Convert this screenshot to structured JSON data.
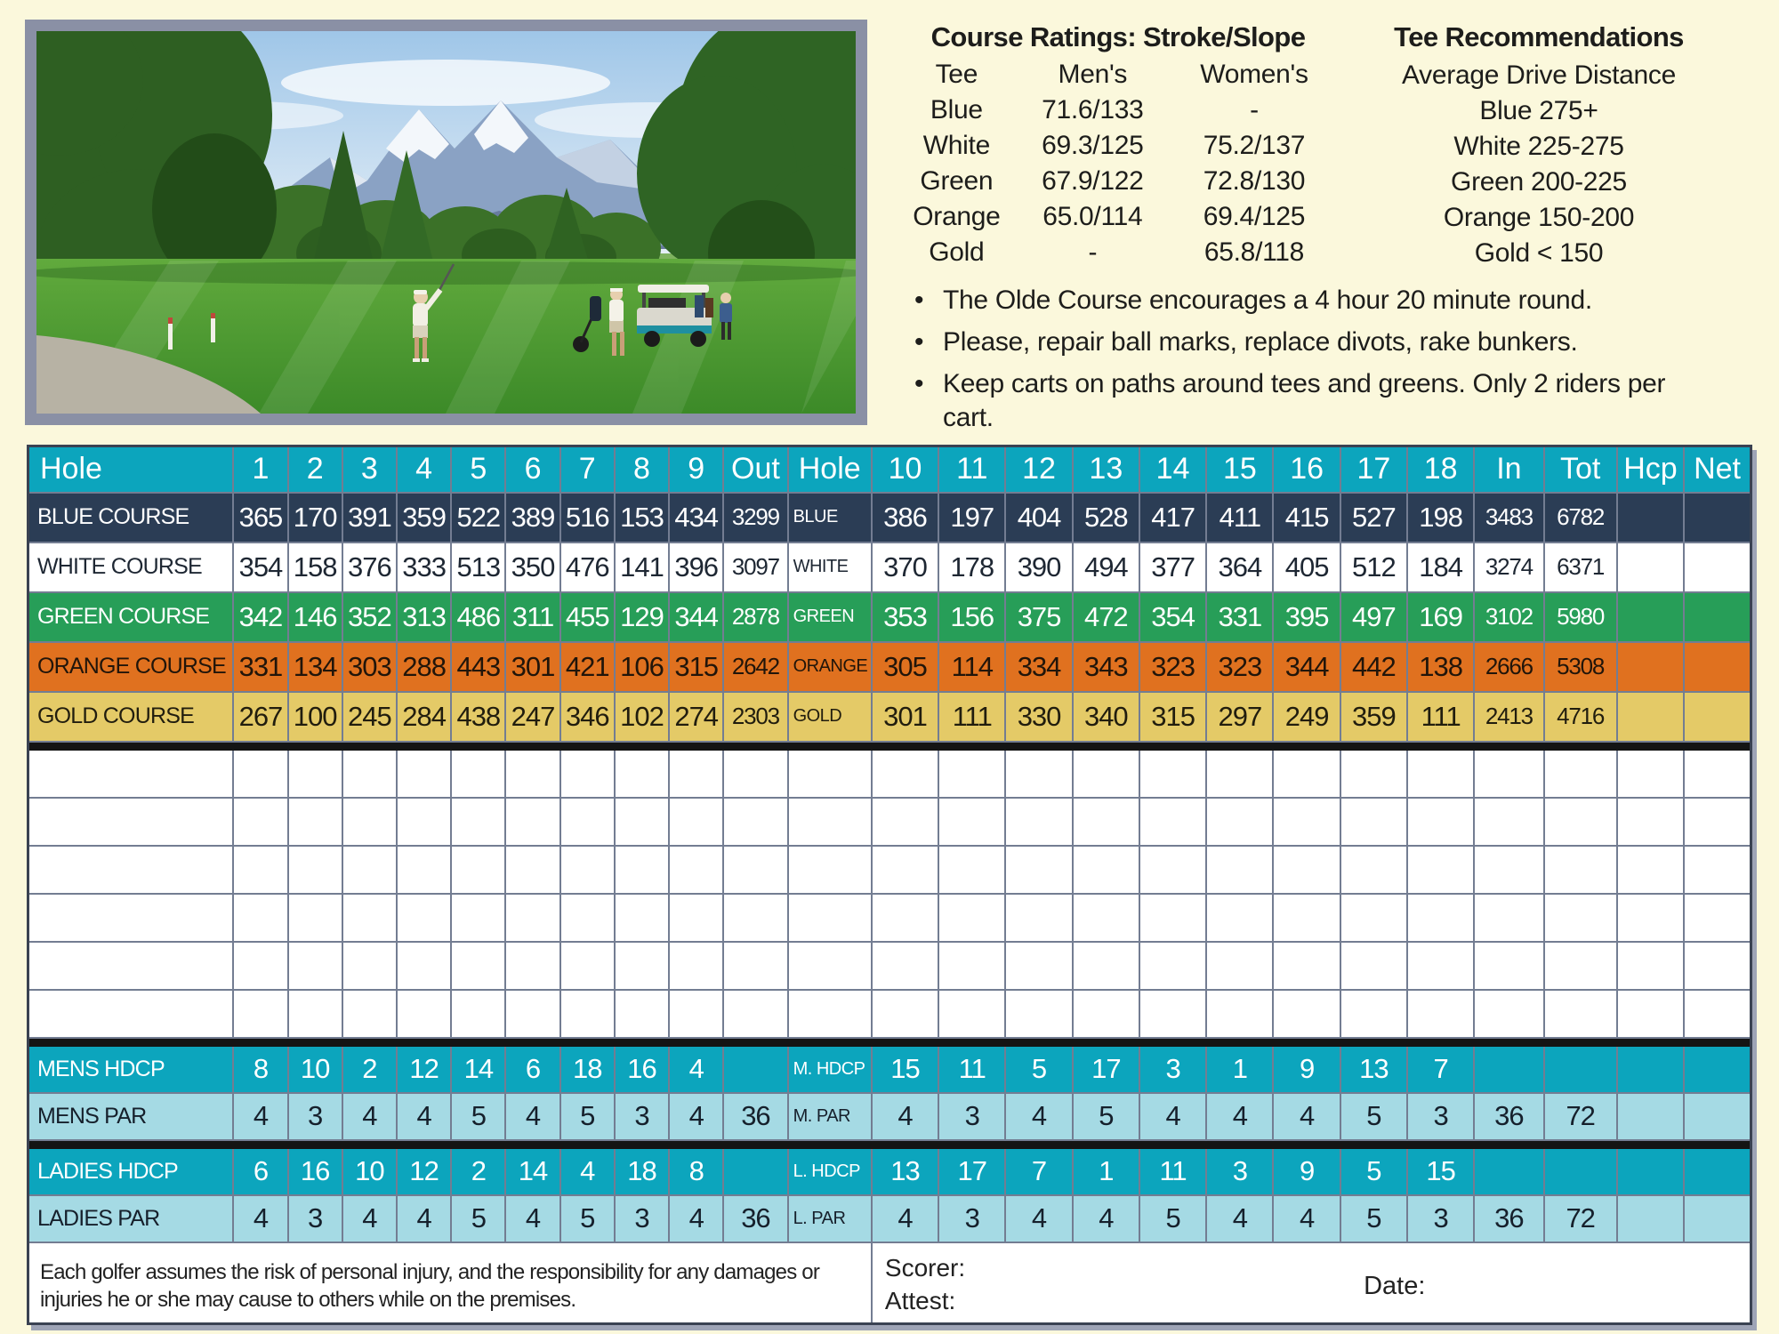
{
  "page": {
    "background": "#FBF8DC"
  },
  "photo": {
    "description": "Golfers and a cart on a tree-lined fairway with snow-capped twin peaks in the distance"
  },
  "ratings": {
    "title": "Course Ratings: Stroke/Slope",
    "columns": [
      "Tee",
      "Men's",
      "Women's"
    ],
    "rows": [
      [
        "Blue",
        "71.6/133",
        "-"
      ],
      [
        "White",
        "69.3/125",
        "75.2/137"
      ],
      [
        "Green",
        "67.9/122",
        "72.8/130"
      ],
      [
        "Orange",
        "65.0/114",
        "69.4/125"
      ],
      [
        "Gold",
        "-",
        "65.8/118"
      ]
    ]
  },
  "recommendations": {
    "title": "Tee Recommendations",
    "subtitle": "Average Drive Distance",
    "items": [
      "Blue 275+",
      "White 225-275",
      "Green 200-225",
      "Orange 150-200",
      "Gold < 150"
    ]
  },
  "notes": [
    "The Olde Course encourages a 4 hour 20 minute round.",
    "Please, repair ball marks, replace divots, rake bunkers.",
    "Keep carts on paths around tees and greens. Only 2 riders per cart."
  ],
  "scorecard": {
    "front_header": {
      "label": "Hole",
      "holes": [
        "1",
        "2",
        "3",
        "4",
        "5",
        "6",
        "7",
        "8",
        "9"
      ],
      "out": "Out"
    },
    "back_header": {
      "label": "Hole",
      "holes": [
        "10",
        "11",
        "12",
        "13",
        "14",
        "15",
        "16",
        "17",
        "18"
      ],
      "in": "In",
      "tot": "Tot",
      "hcp": "Hcp",
      "net": "Net"
    },
    "courses": [
      {
        "name": "BLUE COURSE",
        "short": "BLUE",
        "front": [
          365,
          170,
          391,
          359,
          522,
          389,
          516,
          153,
          434
        ],
        "out": 3299,
        "back": [
          386,
          197,
          404,
          528,
          417,
          411,
          415,
          527,
          198
        ],
        "in": 3483,
        "tot": 6782,
        "bg": "#2B3D55",
        "fg": "#FFFFFF"
      },
      {
        "name": "WHITE COURSE",
        "short": "WHITE",
        "front": [
          354,
          158,
          376,
          333,
          513,
          350,
          476,
          141,
          396
        ],
        "out": 3097,
        "back": [
          370,
          178,
          390,
          494,
          377,
          364,
          405,
          512,
          184
        ],
        "in": 3274,
        "tot": 6371,
        "bg": "#FFFFFF",
        "fg": "#1E2733"
      },
      {
        "name": "GREEN COURSE",
        "short": "GREEN",
        "front": [
          342,
          146,
          352,
          313,
          486,
          311,
          455,
          129,
          344
        ],
        "out": 2878,
        "back": [
          353,
          156,
          375,
          472,
          354,
          331,
          395,
          497,
          169
        ],
        "in": 3102,
        "tot": 5980,
        "bg": "#279E58",
        "fg": "#FFFFFF"
      },
      {
        "name": "ORANGE COURSE",
        "short": "ORANGE",
        "front": [
          331,
          134,
          303,
          288,
          443,
          301,
          421,
          106,
          315
        ],
        "out": 2642,
        "back": [
          305,
          114,
          334,
          343,
          323,
          323,
          344,
          442,
          138
        ],
        "in": 2666,
        "tot": 5308,
        "bg": "#E0711F",
        "fg": "#21150A"
      },
      {
        "name": "GOLD COURSE",
        "short": "GOLD",
        "front": [
          267,
          100,
          245,
          284,
          438,
          247,
          346,
          102,
          274
        ],
        "out": 2303,
        "back": [
          301,
          111,
          330,
          340,
          315,
          297,
          249,
          359,
          111
        ],
        "in": 2413,
        "tot": 4716,
        "bg": "#E4CA67",
        "fg": "#211D0E"
      }
    ],
    "blank_rows": 6,
    "bottom_rows": [
      {
        "label": "MENS HDCP",
        "short": "M. HDCP",
        "front": [
          "8",
          "10",
          "2",
          "12",
          "14",
          "6",
          "18",
          "16",
          "4"
        ],
        "out": "",
        "back": [
          "15",
          "11",
          "5",
          "17",
          "3",
          "1",
          "9",
          "13",
          "7"
        ],
        "in": "",
        "tot": "",
        "style": "teal"
      },
      {
        "label": "MENS PAR",
        "short": "M. PAR",
        "front": [
          "4",
          "3",
          "4",
          "4",
          "5",
          "4",
          "5",
          "3",
          "4"
        ],
        "out": "36",
        "back": [
          "4",
          "3",
          "4",
          "5",
          "4",
          "4",
          "4",
          "5",
          "3"
        ],
        "in": "36",
        "tot": "72",
        "style": "light"
      },
      {
        "label": "LADIES HDCP",
        "short": "L. HDCP",
        "front": [
          "6",
          "16",
          "10",
          "12",
          "2",
          "14",
          "4",
          "18",
          "8"
        ],
        "out": "",
        "back": [
          "13",
          "17",
          "7",
          "1",
          "11",
          "3",
          "9",
          "5",
          "15"
        ],
        "in": "",
        "tot": "",
        "style": "teal"
      },
      {
        "label": "LADIES PAR",
        "short": "L. PAR",
        "front": [
          "4",
          "3",
          "4",
          "4",
          "5",
          "4",
          "5",
          "3",
          "4"
        ],
        "out": "36",
        "back": [
          "4",
          "3",
          "4",
          "4",
          "5",
          "4",
          "4",
          "5",
          "3"
        ],
        "in": "36",
        "tot": "72",
        "style": "light"
      }
    ],
    "footer": {
      "disclaimer": [
        "Each golfer assumes the risk of personal injury, and the responsibility for any damages or",
        "injuries he or she may cause to others while on the premises."
      ],
      "scorer_label": "Scorer:",
      "attest_label": "Attest:",
      "date_label": "Date:"
    }
  },
  "colors": {
    "header_teal": "#0CA5BD",
    "light_blue_row": "#A5DAE4",
    "grid_line": "#737D92",
    "separator_black": "#141414",
    "frame_gray": "#8A90A5",
    "background_cream": "#FBF8DC"
  }
}
